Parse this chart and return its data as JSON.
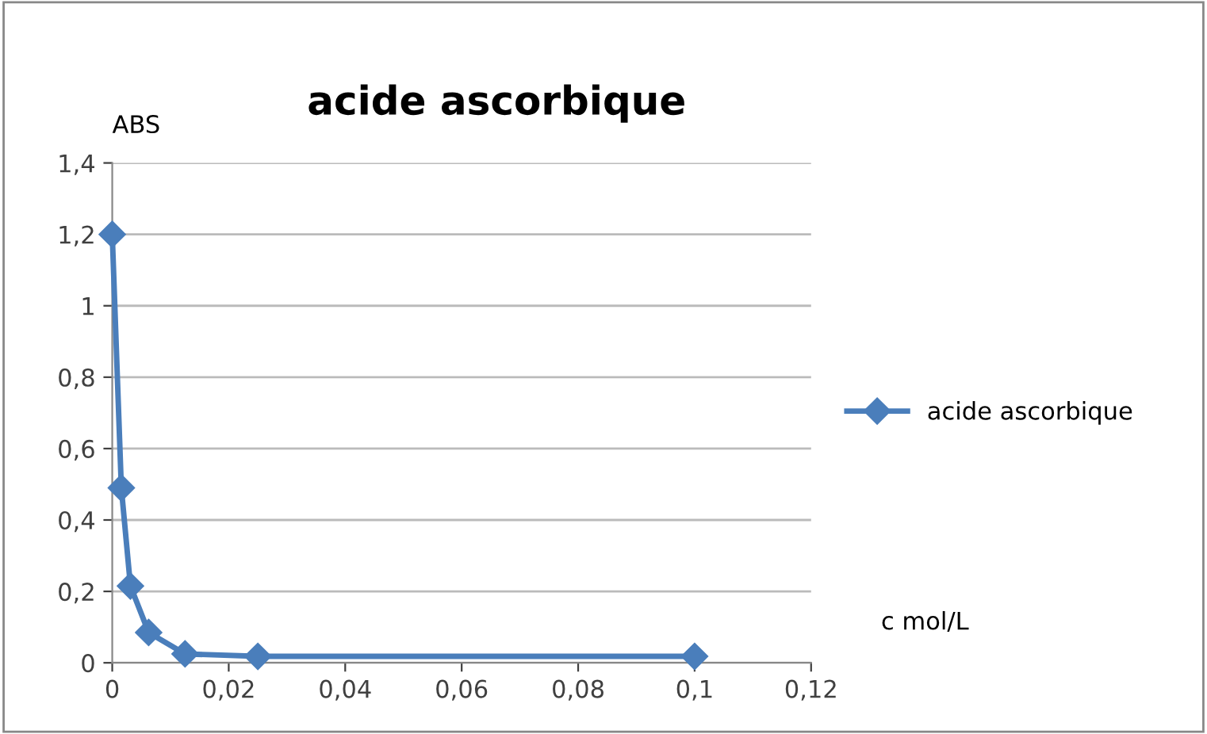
{
  "chart_data": {
    "type": "line",
    "title": "acide ascorbique",
    "xlabel": "c mol/L",
    "ylabel": "ABS",
    "x": [
      0,
      0.00156,
      0.003125,
      0.00625,
      0.0125,
      0.025,
      0.1
    ],
    "series": [
      {
        "name": "acide ascorbique",
        "color": "#4a7ebb",
        "values": [
          1.2,
          0.49,
          0.215,
          0.085,
          0.025,
          0.018,
          0.018
        ]
      }
    ],
    "xlim": [
      0,
      0.12
    ],
    "xticks": [
      0,
      {
        "value": 0.02,
        "label": "0,02"
      },
      {
        "value": 0.04,
        "label": "0,04"
      },
      {
        "value": 0.06,
        "label": "0,06"
      },
      {
        "value": 0.08,
        "label": "0,08"
      },
      {
        "value": 0.1,
        "label": "0,1"
      },
      {
        "value": 0.12,
        "label": "0,12"
      }
    ],
    "ylim": [
      0,
      1.4
    ],
    "yticks": [
      0,
      {
        "value": 0.2,
        "label": "0,2"
      },
      {
        "value": 0.4,
        "label": "0,4"
      },
      {
        "value": 0.6,
        "label": "0,6"
      },
      {
        "value": 0.8,
        "label": "0,8"
      },
      1,
      {
        "value": 1.2,
        "label": "1,2"
      },
      {
        "value": 1.4,
        "label": "1,4"
      }
    ],
    "grid": "y",
    "legend": "right",
    "marker": "diamond",
    "line_style": "solid"
  }
}
